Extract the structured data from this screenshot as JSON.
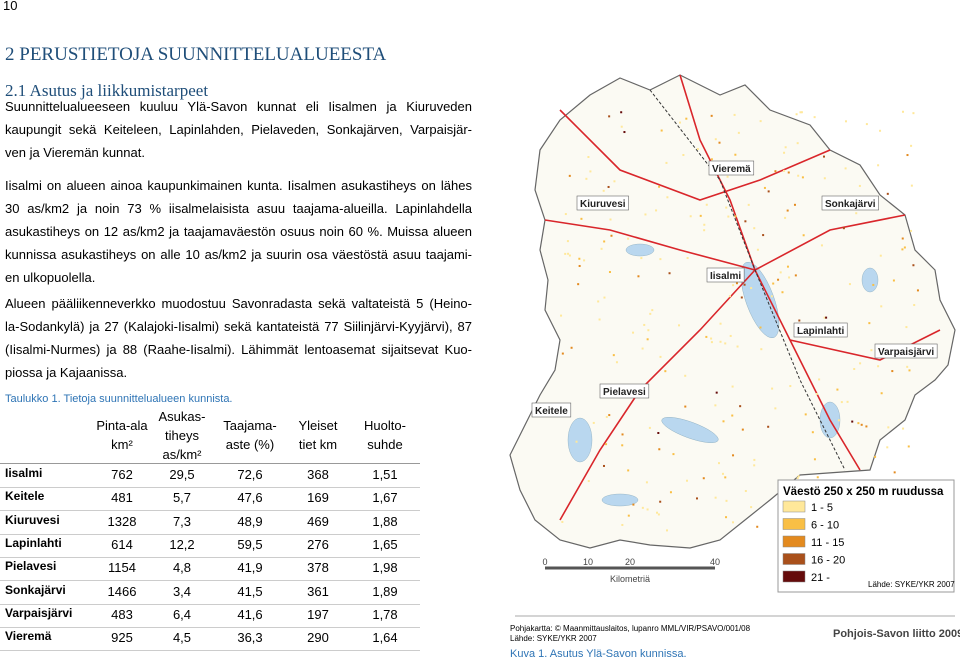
{
  "page_number": "10",
  "heading": "2 PERUSTIETOJA SUUNNITTELUALUEESTA",
  "subheading": "2.1 Asutus ja liikkumistarpeet",
  "paragraphs": [
    {
      "lines": [
        "Suunnittelualueeseen kuuluu Ylä-Savon kunnat eli Iisalmen ja Kiuruveden",
        "kaupungit sekä Keiteleen, Lapinlahden, Pielaveden, Sonkajärven, Varpaisjär-",
        "ven ja Vieremän kunnat."
      ]
    },
    {
      "lines": [
        "Iisalmi on alueen ainoa kaupunkimainen kunta. Iisalmen asukastiheys on lähes",
        "30 as/km2 ja noin 73 % iisalmelaisista asuu taajama-alueilla. Lapinlahdella",
        "asukastiheys on 12 as/km2 ja taajamaväestön osuus noin 60 %. Muissa alueen",
        "kunnissa asukastiheys on alle 10 as/km2 ja suurin osa väestöstä asuu taajami-",
        "en ulkopuolella."
      ]
    },
    {
      "lines": [
        "Alueen pääliikenneverkko muodostuu Savonradasta sekä valtateistä 5 (Heino-",
        "la-Sodankylä) ja 27 (Kalajoki-Iisalmi) sekä kantateistä 77 Siilinjärvi-Kyyjärvi), 87",
        "(Iisalmi-Nurmes) ja 88 (Raahe-Iisalmi). Lähimmät lentoasemat sijaitsevat Kuo-",
        "piossa ja Kajaanissa."
      ]
    }
  ],
  "table": {
    "caption": "Taulukko 1. Tietoja suunnittelualueen kunnista.",
    "header": [
      [
        "Pinta-ala",
        "km²"
      ],
      [
        "Asukas-",
        "tiheys",
        "as/km²"
      ],
      [
        "Taajama-",
        "aste (%)"
      ],
      [
        "Yleiset",
        "tiet km"
      ],
      [
        "Huolto-",
        "suhde"
      ]
    ],
    "rows": [
      [
        "Iisalmi",
        "762",
        "29,5",
        "72,6",
        "368",
        "1,51"
      ],
      [
        "Keitele",
        "481",
        "5,7",
        "47,6",
        "169",
        "1,67"
      ],
      [
        "Kiuruvesi",
        "1328",
        "7,3",
        "48,9",
        "469",
        "1,88"
      ],
      [
        "Lapinlahti",
        "614",
        "12,2",
        "59,5",
        "276",
        "1,65"
      ],
      [
        "Pielavesi",
        "1154",
        "4,8",
        "41,9",
        "378",
        "1,98"
      ],
      [
        "Sonkajärvi",
        "1466",
        "3,4",
        "41,5",
        "361",
        "1,89"
      ],
      [
        "Varpaisjärvi",
        "483",
        "6,4",
        "41,6",
        "197",
        "1,78"
      ],
      [
        "Vieremä",
        "925",
        "4,5",
        "36,3",
        "290",
        "1,64"
      ]
    ]
  },
  "map": {
    "labels": [
      "Vieremä",
      "Kiuruvesi",
      "Sonkajärvi",
      "Iisalmi",
      "Lapinlahti",
      "Varpaisjärvi",
      "Pielavesi",
      "Keitele"
    ],
    "legend": {
      "title": "Väestö 250 x 250 m ruudussa",
      "items": [
        {
          "label": "1 - 5",
          "color": "#ffe89a"
        },
        {
          "label": "6 - 10",
          "color": "#f9bf45"
        },
        {
          "label": "11 - 15",
          "color": "#e38a1f"
        },
        {
          "label": "16 - 20",
          "color": "#a9501b"
        },
        {
          "label": "21 -",
          "color": "#650b0b"
        }
      ],
      "source": "Lähde: SYKE/YKR 2007"
    },
    "scale": {
      "ticks": [
        "0",
        "10",
        "20",
        "40"
      ],
      "unit": "Kilometriä"
    },
    "credits": [
      "Pohjakartta: © Maanmittauslaitos, lupanro MML/VIR/PSAVO/001/08",
      "Lähde: SYKE/YKR 2007"
    ],
    "publisher": "Pohjois-Savon liitto 2009",
    "caption": "Kuva 1. Asutus Ylä-Savon kunnissa."
  }
}
